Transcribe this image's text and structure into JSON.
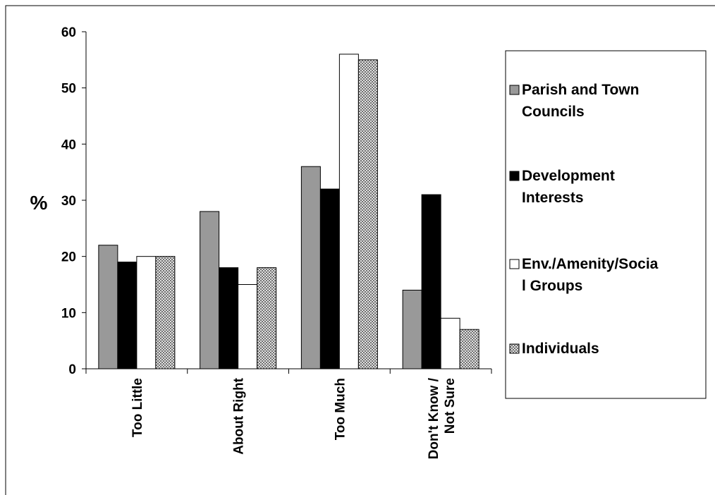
{
  "chart_data": {
    "type": "bar",
    "y_label": "%",
    "categories": [
      "Too Little",
      "About Right",
      "Too Much",
      "Don't Know / Not Sure"
    ],
    "series": [
      {
        "name": "Parish and Town Councils",
        "color": "#999999",
        "values": [
          22,
          28,
          36,
          14
        ]
      },
      {
        "name": "Development Interests",
        "color": "#000000",
        "values": [
          19,
          18,
          32,
          31
        ]
      },
      {
        "name": "Env./Amenity/Social Groups",
        "color": "#ffffff",
        "values": [
          20,
          15,
          56,
          9
        ]
      },
      {
        "name": "Individuals",
        "color": "#ffffff",
        "pattern": "hatch",
        "values": [
          20,
          18,
          55,
          7
        ]
      }
    ],
    "ylim": [
      0,
      60
    ],
    "yticks": [
      0,
      10,
      20,
      30,
      40,
      50,
      60
    ],
    "grid": false,
    "legend": "right"
  }
}
